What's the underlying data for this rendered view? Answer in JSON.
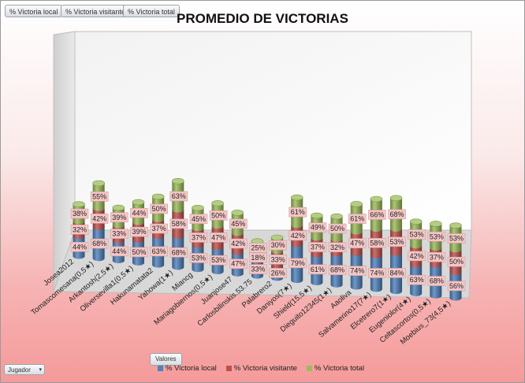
{
  "filters": [
    "% Victoria local",
    "% Victoria visitante",
    "% Victoria total"
  ],
  "values_button": "Valores",
  "row_field": {
    "label": "Jugador",
    "arrow": "▾"
  },
  "colors": {
    "local": "#4f81bd",
    "visitante": "#c0504d",
    "total": "#9bbb59"
  },
  "chart_data": {
    "type": "bar",
    "stacked": true,
    "three_d": true,
    "title": "PROMEDIO DE VICTORIAS",
    "xlabel": "",
    "ylabel": "",
    "legend_position": "bottom",
    "categories": [
      "Josea2012",
      "Tomascomesana(0,5★)",
      "Arkantosh(2,5★)",
      "Oliversevilla1(0,5★)",
      "Hakunamatata2",
      "Yahowa(1★)",
      "Miancg",
      "Mariagobiernos(0,5★)",
      "Juanjose47",
      "Carlosbilinskis.53.75",
      "Palabrero2",
      "Daniyos(7★)",
      "Shield(15,5★)",
      "Dieguito12345(1★)",
      "Aaoliva",
      "Salvamerino17(7★)",
      "Elcetrero7(1★)",
      "Eugeniolor(4★)",
      "Celtascortos(0,5★)",
      "Moebius_73(4,5★)"
    ],
    "series": [
      {
        "name": "% Victoria local",
        "labels": [
          "44%",
          "68%",
          "44%",
          "50%",
          "63%",
          "68%",
          "53%",
          "53%",
          "47%",
          "33%",
          "26%",
          "79%",
          "61%",
          "68%",
          "74%",
          "74%",
          "84%",
          "63%",
          "68%",
          "56%"
        ],
        "values": [
          44,
          68,
          44,
          50,
          63,
          68,
          53,
          53,
          47,
          33,
          26,
          79,
          61,
          68,
          74,
          74,
          84,
          63,
          68,
          56
        ]
      },
      {
        "name": "% Victoria visitante",
        "labels": [
          "32%",
          "42%",
          "33%",
          "39%",
          "37%",
          "58%",
          "37%",
          "47%",
          "42%",
          "18%",
          "33%",
          "42%",
          "37%",
          "32%",
          "47%",
          "58%",
          "53%",
          "42%",
          "37%",
          "50%"
        ],
        "values": [
          32,
          42,
          33,
          39,
          37,
          58,
          37,
          47,
          42,
          18,
          33,
          42,
          37,
          32,
          47,
          58,
          53,
          42,
          37,
          50
        ]
      },
      {
        "name": "% Victoria total",
        "labels": [
          "38%",
          "55%",
          "39%",
          "44%",
          "50%",
          "63%",
          "45%",
          "50%",
          "45%",
          "25%",
          "30%",
          "61%",
          "49%",
          "50%",
          "61%",
          "66%",
          "68%",
          "53%",
          "53%",
          "53%"
        ],
        "values": [
          38,
          55,
          39,
          44,
          50,
          63,
          45,
          50,
          45,
          25,
          30,
          61,
          49,
          50,
          61,
          66,
          68,
          53,
          53,
          53
        ]
      }
    ]
  }
}
